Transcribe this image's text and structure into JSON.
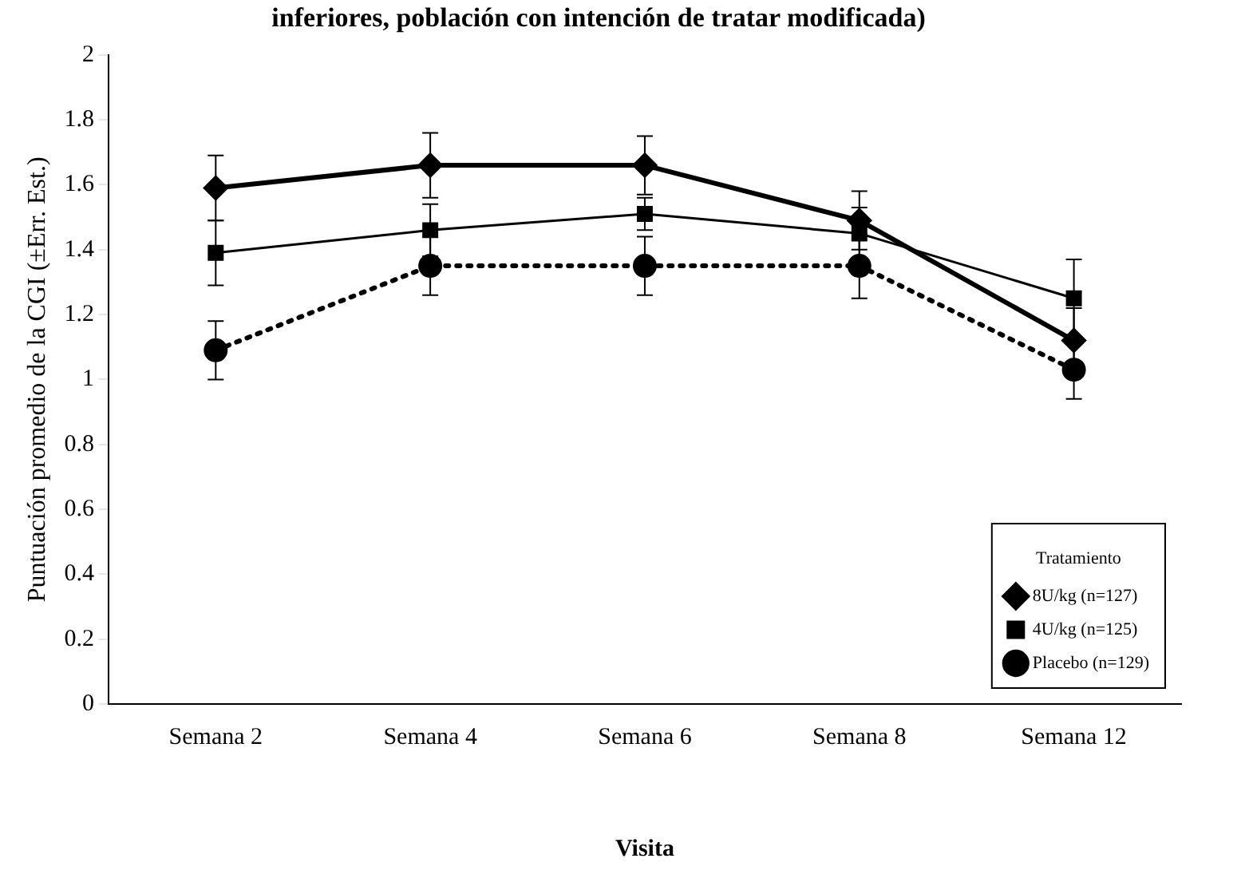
{
  "chart_data": {
    "type": "line",
    "title": "inferiores, población con intención de tratar modificada)",
    "xlabel": "Visita",
    "ylabel": "Puntuación promedio de la CGI (±Err. Est.)",
    "legend_title": "Tratamiento",
    "categories": [
      "Semana 2",
      "Semana 4",
      "Semana 6",
      "Semana 8",
      "Semana 12"
    ],
    "series": [
      {
        "name": "8U/kg (n=127)",
        "color": "#000000",
        "values": [
          1.59,
          1.66,
          1.66,
          1.49,
          1.12
        ],
        "errors": [
          0.1,
          0.1,
          0.09,
          0.09,
          0.1
        ],
        "marker": "diamond",
        "line_style": "solid"
      },
      {
        "name": "4U/kg (n=125)",
        "color": "#000000",
        "values": [
          1.39,
          1.46,
          1.51,
          1.45,
          1.25
        ],
        "errors": [
          0.1,
          0.08,
          0.05,
          0.08,
          0.12
        ],
        "marker": "square",
        "line_style": "solid"
      },
      {
        "name": "Placebo (n=129)",
        "color": "#000000",
        "values": [
          1.09,
          1.35,
          1.35,
          1.35,
          1.03
        ],
        "errors": [
          0.09,
          0.09,
          0.09,
          0.1,
          0.09
        ],
        "marker": "circle",
        "line_style": "dotted"
      }
    ],
    "ylim": [
      0,
      2
    ],
    "yticks": [
      0,
      0.2,
      0.4,
      0.6,
      0.8,
      1,
      1.2,
      1.4,
      1.6,
      1.8,
      2
    ],
    "grid": false,
    "legend": "bottom right"
  }
}
